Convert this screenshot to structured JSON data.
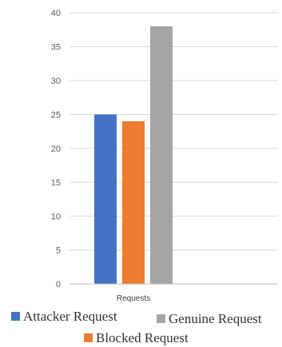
{
  "chart_data": {
    "type": "bar",
    "title": "",
    "xlabel": "",
    "ylabel": "",
    "categories": [
      "Requests"
    ],
    "ylim": [
      0,
      40
    ],
    "yticks": [
      0,
      5,
      10,
      15,
      20,
      25,
      30,
      35,
      40
    ],
    "grid": true,
    "legend_position": "bottom",
    "series": [
      {
        "name": "Attacker Request",
        "values": [
          25
        ],
        "color": "#4472c4"
      },
      {
        "name": "Blocked Request",
        "values": [
          24
        ],
        "color": "#ed7d31"
      },
      {
        "name": "Genuine Request",
        "values": [
          38
        ],
        "color": "#a5a5a5"
      }
    ]
  }
}
